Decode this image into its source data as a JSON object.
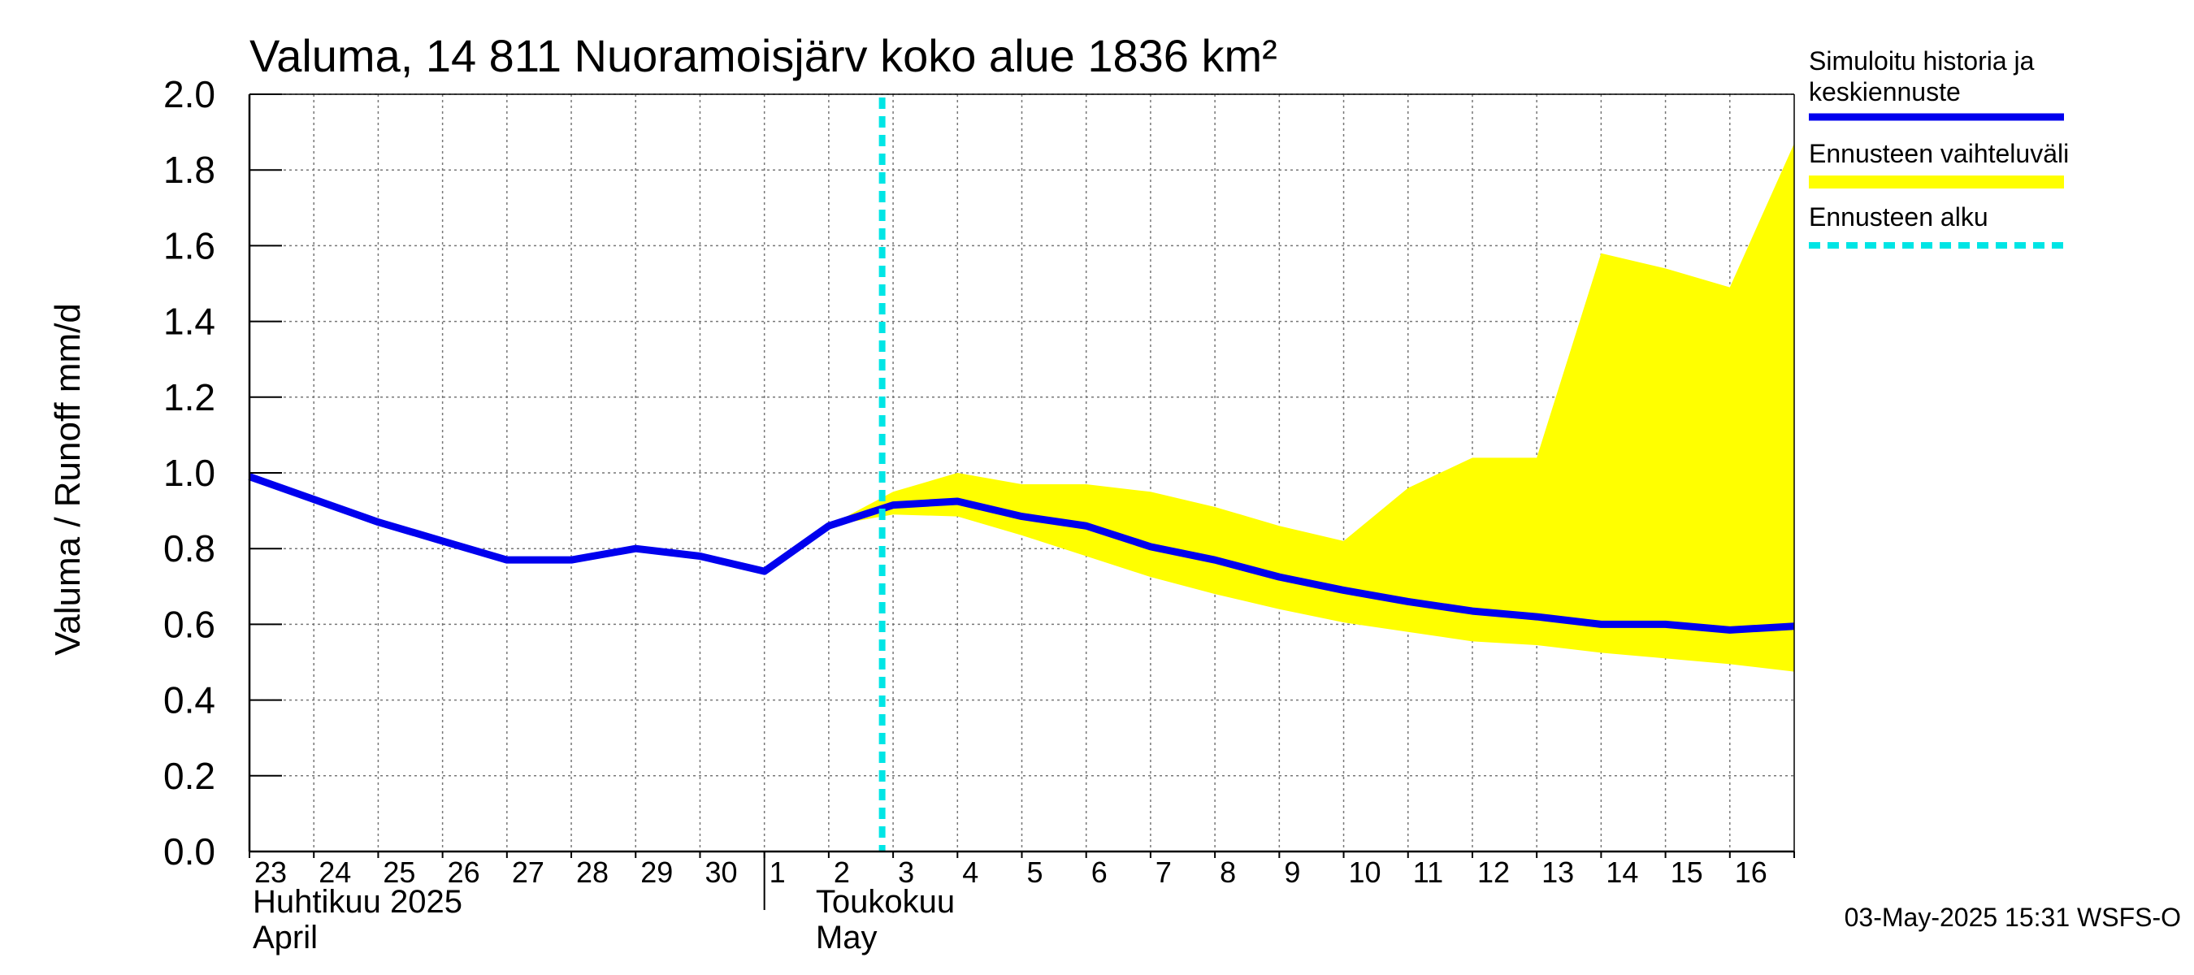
{
  "chart_data": {
    "type": "line",
    "title": "Valuma, 14 811 Nuoramoisjärv koko alue 1836 km²",
    "ylabel": "Valuma / Runoff    mm/d",
    "ylim": [
      0.0,
      2.0
    ],
    "y_ticks": [
      "0.0",
      "0.2",
      "0.4",
      "0.6",
      "0.8",
      "1.0",
      "1.2",
      "1.4",
      "1.6",
      "1.8",
      "2.0"
    ],
    "x_tick_labels": [
      "23",
      "24",
      "25",
      "26",
      "27",
      "28",
      "29",
      "30",
      "1",
      "2",
      "3",
      "4",
      "5",
      "6",
      "7",
      "8",
      "9",
      "10",
      "11",
      "12",
      "13",
      "14",
      "15",
      "16"
    ],
    "month_labels": [
      {
        "line1": "Huhtikuu  2025",
        "line2": "April"
      },
      {
        "line1": "Toukokuu",
        "line2": "May"
      }
    ],
    "forecast_start": "2025-05-03",
    "series": [
      {
        "name": "Simuloitu historia ja keskiennuste",
        "color": "#0000ee",
        "x": [
          "2025-04-23",
          "2025-04-24",
          "2025-04-25",
          "2025-04-26",
          "2025-04-27",
          "2025-04-28",
          "2025-04-29",
          "2025-04-30",
          "2025-05-01",
          "2025-05-02",
          "2025-05-03",
          "2025-05-04",
          "2025-05-05",
          "2025-05-06",
          "2025-05-07",
          "2025-05-08",
          "2025-05-09",
          "2025-05-10",
          "2025-05-11",
          "2025-05-12",
          "2025-05-13",
          "2025-05-14",
          "2025-05-15",
          "2025-05-16",
          "2025-05-17"
        ],
        "values": [
          0.99,
          0.93,
          0.87,
          0.82,
          0.77,
          0.77,
          0.8,
          0.78,
          0.74,
          0.86,
          0.915,
          0.925,
          0.885,
          0.86,
          0.805,
          0.77,
          0.725,
          0.69,
          0.66,
          0.635,
          0.62,
          0.6,
          0.6,
          0.585,
          0.595
        ]
      },
      {
        "name": "Ennusteen vaihteluväli",
        "color": "#ffff00",
        "x": [
          "2025-05-02",
          "2025-05-03",
          "2025-05-04",
          "2025-05-05",
          "2025-05-06",
          "2025-05-07",
          "2025-05-08",
          "2025-05-09",
          "2025-05-10",
          "2025-05-11",
          "2025-05-12",
          "2025-05-13",
          "2025-05-14",
          "2025-05-15",
          "2025-05-16",
          "2025-05-17"
        ],
        "upper": [
          0.86,
          0.95,
          1.0,
          0.97,
          0.97,
          0.95,
          0.91,
          0.86,
          0.82,
          0.96,
          1.04,
          1.04,
          1.58,
          1.54,
          1.49,
          1.87
        ],
        "lower": [
          0.86,
          0.89,
          0.885,
          0.835,
          0.78,
          0.725,
          0.68,
          0.64,
          0.605,
          0.58,
          0.555,
          0.545,
          0.525,
          0.51,
          0.495,
          0.475
        ]
      }
    ],
    "legend": [
      {
        "label_line1": "Simuloitu historia ja",
        "label_line2": "keskiennuste",
        "color": "#0000ee",
        "style": "solid"
      },
      {
        "label_line1": "Ennusteen vaihteluväli",
        "label_line2": "",
        "color": "#ffff00",
        "style": "band"
      },
      {
        "label_line1": "Ennusteen alku",
        "label_line2": "",
        "color": "#00e5e5",
        "style": "dashed"
      }
    ],
    "legend_placement": "right",
    "grid": true
  },
  "footer": "03-May-2025 15:31 WSFS-O"
}
